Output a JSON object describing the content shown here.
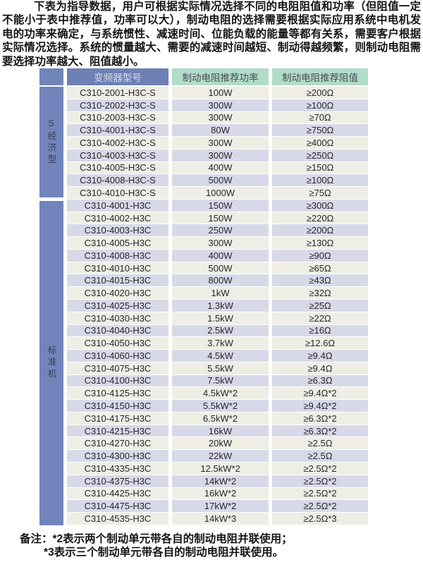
{
  "intro": {
    "lines": [
      "下表为指导数据，用户可根据实际情况选择不同的电阻阻值和功率（但阻值一定",
      "不能小于表中推荐值，功率可以大），制动电阻的选择需要根据实际应用系统中电机发",
      "电的功率来确定，与系统惯性、减速时间、位能负载的能量等都有关系，需要客户根据",
      "实际情况选择。系统的惯量越大、需要的减速时间越短、制动得越频繁，则制动电阻需",
      "要选择功率越大、阻值越小。"
    ]
  },
  "table": {
    "headers": {
      "model": "变频器型号",
      "power": "制动电阻推荐功率",
      "resistance": "制动电阻推荐阻值"
    },
    "sections": [
      {
        "label": "S经济型",
        "rows": [
          [
            "C310-2001-H3C-S",
            "100W",
            "≥200Ω"
          ],
          [
            "C310-2002-H3C-S",
            "300W",
            "≥100Ω"
          ],
          [
            "C310-2003-H3C-S",
            "300W",
            "≥70Ω"
          ],
          [
            "C310-4001-H3C-S",
            "80W",
            "≥750Ω"
          ],
          [
            "C310-4002-H3C-S",
            "300W",
            "≥400Ω"
          ],
          [
            "C310-4003-H3C-S",
            "300W",
            "≥250Ω"
          ],
          [
            "C310-4005-H3C-S",
            "400W",
            "≥150Ω"
          ],
          [
            "C310-4008-H3C-S",
            "500W",
            "≥100Ω"
          ],
          [
            "C310-4010-H3C-S",
            "1000W",
            "≥75Ω"
          ]
        ]
      },
      {
        "label": "标准机",
        "rows": [
          [
            "C310-4001-H3C",
            "150W",
            "≥300Ω"
          ],
          [
            "C310-4002-H3C",
            "150W",
            "≥220Ω"
          ],
          [
            "C310-4003-H3C",
            "250W",
            "≥200Ω"
          ],
          [
            "C310-4005-H3C",
            "300W",
            "≥130Ω"
          ],
          [
            "C310-4008-H3C",
            "400W",
            "≥90Ω"
          ],
          [
            "C310-4010-H3C",
            "500W",
            "≥65Ω"
          ],
          [
            "C310-4015-H3C",
            "800W",
            "≥43Ω"
          ],
          [
            "C310-4020-H3C",
            "1kW",
            "≥32Ω"
          ],
          [
            "C310-4025-H3C",
            "1.3kW",
            "≥25Ω"
          ],
          [
            "C310-4030-H3C",
            "1.5kW",
            "≥22Ω"
          ],
          [
            "C310-4040-H3C",
            "2.5kW",
            "≥16Ω"
          ],
          [
            "C310-4050-H3C",
            "3.7kW",
            "≥12.6Ω"
          ],
          [
            "C310-4060-H3C",
            "4.5kW",
            "≥9.4Ω"
          ],
          [
            "C310-4075-H3C",
            "5.5kW",
            "≥9.4Ω"
          ],
          [
            "C310-4100-H3C",
            "7.5kW",
            "≥6.3Ω"
          ],
          [
            "C310-4125-H3C",
            "4.5kW*2",
            "≥9.4Ω*2"
          ],
          [
            "C310-4150-H3C",
            "5.5kW*2",
            "≥9.4Ω*2"
          ],
          [
            "C310-4175-H3C",
            "6.5kW*2",
            "≥6.3Ω*2"
          ],
          [
            "C310-4215-H3C",
            "16kW",
            "≥6.3Ω*2"
          ],
          [
            "C310-4270-H3C",
            "20kW",
            "≥2.5Ω"
          ],
          [
            "C310-4300-H3C",
            "22kW",
            "≥2.5Ω"
          ],
          [
            "C310-4335-H3C",
            "12.5kW*2",
            "≥2.5Ω*2"
          ],
          [
            "C310-4375-H3C",
            "14kW*2",
            "≥2.5Ω*2"
          ],
          [
            "C310-4425-H3C",
            "16kW*2",
            "≥2.5Ω*2"
          ],
          [
            "C310-4475-H3C",
            "17kW*2",
            "≥2.5Ω*2"
          ],
          [
            "C310-4535-H3C",
            "14kW*3",
            "≥2.5Ω*3"
          ]
        ]
      }
    ]
  },
  "notes": {
    "line1": "备注：*2表示两个制动单元带各自的制动电阻并联使用；",
    "line2": "*3表示三个制动单元带各自的制动电阻并联使用。"
  },
  "colors": {
    "blue_header": "#6e80b4",
    "blue_sidebar": "#7285bb",
    "green_header": "#b2dcca",
    "row_light": "#eeeee5",
    "row_lavender": "#d8d9e8",
    "header_text": "#d9dde9",
    "cell_text": "#26262a",
    "body_text": "#141414"
  }
}
